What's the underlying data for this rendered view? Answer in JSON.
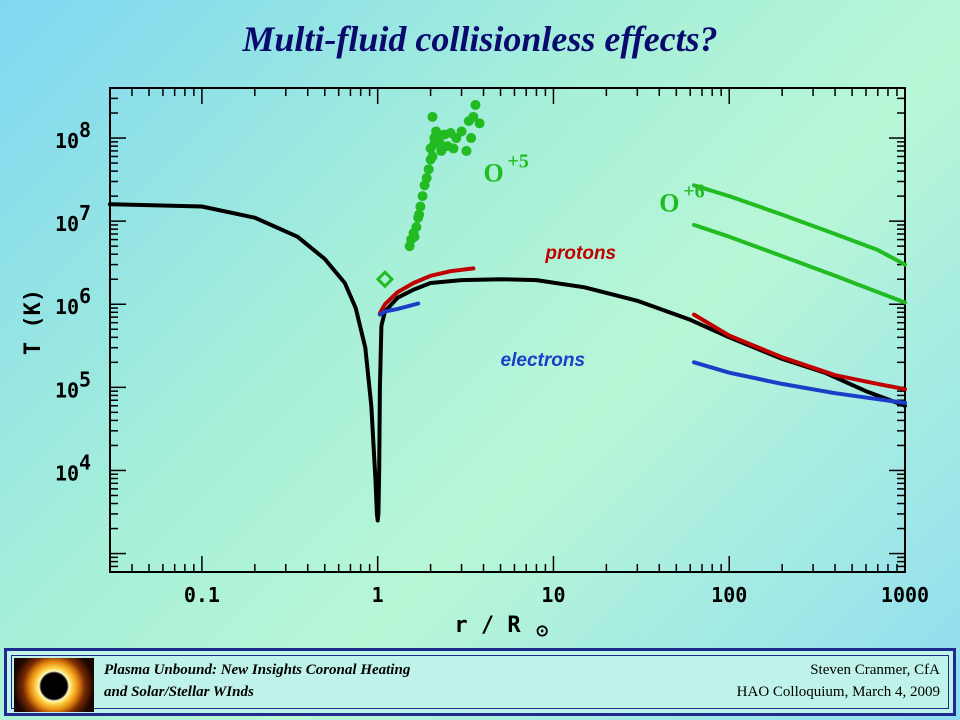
{
  "slide": {
    "title": "Multi-fluid collisionless effects?"
  },
  "chart_data": {
    "type": "line",
    "x_scale": "log",
    "y_scale": "log",
    "xlim": [
      0.03,
      1000
    ],
    "ylim": [
      600,
      400000000
    ],
    "x_ticks": [
      {
        "value": 0.1,
        "label": "0.1"
      },
      {
        "value": 1,
        "label": "1"
      },
      {
        "value": 10,
        "label": "10"
      },
      {
        "value": 100,
        "label": "100"
      },
      {
        "value": 1000,
        "label": "1000"
      }
    ],
    "y_ticks": [
      {
        "value": 10000,
        "base": "10",
        "exp": "4"
      },
      {
        "value": 100000,
        "base": "10",
        "exp": "5"
      },
      {
        "value": 1000000,
        "base": "10",
        "exp": "6"
      },
      {
        "value": 10000000,
        "base": "10",
        "exp": "7"
      },
      {
        "value": 100000000,
        "base": "10",
        "exp": "8"
      }
    ],
    "xlabel": "r / R",
    "xlabel_symbol": "⊙",
    "ylabel": "T (K)",
    "series": [
      {
        "name": "",
        "color": "#000000",
        "points": [
          [
            0.03,
            16000000
          ],
          [
            0.1,
            15000000
          ],
          [
            0.2,
            11000000
          ],
          [
            0.35,
            6500000
          ],
          [
            0.5,
            3500000
          ],
          [
            0.65,
            1800000
          ],
          [
            0.75,
            900000
          ],
          [
            0.85,
            300000
          ],
          [
            0.92,
            60000
          ],
          [
            0.97,
            8000
          ],
          [
            0.99,
            3000
          ],
          [
            1.0,
            2500
          ],
          [
            1.01,
            3000
          ],
          [
            1.02,
            10000
          ],
          [
            1.03,
            100000
          ],
          [
            1.05,
            550000
          ],
          [
            1.1,
            820000
          ],
          [
            1.3,
            1200000
          ],
          [
            1.6,
            1500000
          ],
          [
            2.0,
            1800000
          ],
          [
            3.0,
            1950000
          ],
          [
            5.0,
            2000000
          ],
          [
            8.0,
            1950000
          ],
          [
            15.0,
            1600000
          ],
          [
            30.0,
            1100000
          ],
          [
            60.0,
            650000
          ],
          [
            100.0,
            400000
          ],
          [
            200.0,
            220000
          ],
          [
            350.0,
            150000
          ],
          [
            600.0,
            90000
          ],
          [
            1000.0,
            60000
          ]
        ]
      },
      {
        "name": "protons",
        "color": "#c00000",
        "points": [
          [
            1.03,
            780000
          ],
          [
            1.1,
            1000000
          ],
          [
            1.3,
            1400000
          ],
          [
            1.6,
            1800000
          ],
          [
            2.0,
            2200000
          ],
          [
            2.6,
            2500000
          ],
          [
            3.5,
            2700000
          ]
        ]
      },
      {
        "name": "protons",
        "color": "#c00000",
        "points": [
          [
            63,
            750000
          ],
          [
            100,
            420000
          ],
          [
            200,
            230000
          ],
          [
            400,
            140000
          ],
          [
            700,
            110000
          ],
          [
            1000,
            95000
          ]
        ]
      },
      {
        "name": "electrons",
        "color": "#1b3ec8",
        "points": [
          [
            1.03,
            750000
          ],
          [
            1.1,
            820000
          ],
          [
            1.3,
            880000
          ],
          [
            1.7,
            1020000
          ]
        ]
      },
      {
        "name": "electrons",
        "color": "#1b3ec8",
        "points": [
          [
            63,
            200000
          ],
          [
            100,
            150000
          ],
          [
            200,
            110000
          ],
          [
            400,
            85000
          ],
          [
            700,
            72000
          ],
          [
            1000,
            65000
          ]
        ]
      },
      {
        "name": "O+6",
        "color": "#22bb22",
        "points": [
          [
            63,
            27000000
          ],
          [
            100,
            20000000
          ],
          [
            200,
            12000000
          ],
          [
            400,
            7000000
          ],
          [
            700,
            4500000
          ],
          [
            1000,
            3000000
          ]
        ]
      },
      {
        "name": "O+6",
        "color": "#22bb22",
        "points": [
          [
            63,
            9000000
          ],
          [
            100,
            6500000
          ],
          [
            200,
            3800000
          ],
          [
            400,
            2200000
          ],
          [
            700,
            1400000
          ],
          [
            1000,
            1050000
          ]
        ]
      }
    ],
    "scatter": {
      "name": "O+5",
      "color": "#22bb22",
      "points": [
        [
          1.52,
          5000000
        ],
        [
          1.55,
          6000000
        ],
        [
          1.6,
          7200000
        ],
        [
          1.62,
          6500000
        ],
        [
          1.66,
          8500000
        ],
        [
          1.7,
          11000000
        ],
        [
          1.72,
          12000000
        ],
        [
          1.75,
          15000000
        ],
        [
          1.8,
          20000000
        ],
        [
          1.85,
          27000000
        ],
        [
          1.9,
          33000000
        ],
        [
          1.95,
          42000000
        ],
        [
          2.0,
          55000000
        ],
        [
          2.05,
          60000000
        ],
        [
          2.0,
          75000000
        ],
        [
          2.1,
          85000000
        ],
        [
          2.1,
          100000000
        ],
        [
          2.15,
          120000000
        ],
        [
          2.2,
          95000000
        ],
        [
          2.25,
          87000000
        ],
        [
          2.3,
          70000000
        ],
        [
          2.4,
          110000000
        ],
        [
          2.5,
          80000000
        ],
        [
          2.6,
          115000000
        ],
        [
          2.7,
          75000000
        ],
        [
          2.8,
          100000000
        ],
        [
          3.0,
          120000000
        ],
        [
          3.2,
          70000000
        ],
        [
          3.3,
          160000000
        ],
        [
          3.4,
          100000000
        ],
        [
          3.5,
          180000000
        ],
        [
          3.6,
          250000000
        ],
        [
          3.8,
          150000000
        ],
        [
          2.05,
          180000000
        ]
      ]
    },
    "marker": {
      "shape": "diamond",
      "color": "#22bb22",
      "point": [
        1.1,
        2000000
      ]
    },
    "annotations": [
      {
        "text": "O",
        "sup": "+5",
        "color": "#22bb22",
        "at": [
          4.0,
          30000000
        ]
      },
      {
        "text": "O",
        "sup": "+6",
        "color": "#22bb22",
        "at": [
          40.0,
          13000000
        ]
      },
      {
        "text": "protons",
        "sup": "",
        "color": "#c00000",
        "at": [
          9.0,
          3500000
        ]
      },
      {
        "text": "electrons",
        "sup": "",
        "color": "#1b3ec8",
        "at": [
          5.0,
          180000
        ]
      }
    ]
  },
  "footer": {
    "talk_title_line1": "Plasma Unbound:  New Insights Coronal Heating",
    "talk_title_line2": "and Solar/Stellar WInds",
    "author": "Steven Cranmer,  CfA",
    "event": "HAO Colloquium, March 4, 2009"
  }
}
